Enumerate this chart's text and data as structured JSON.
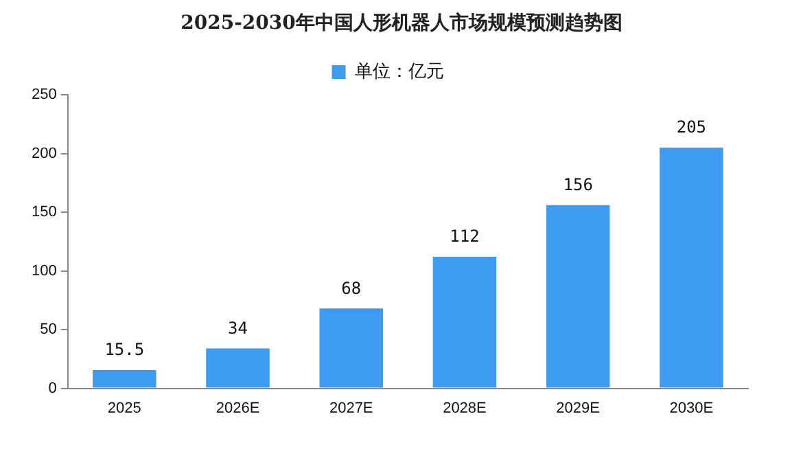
{
  "chart_data": {
    "type": "bar",
    "title": "2025-2030年中国人形机器人市场规模预测趋势图",
    "categories": [
      "2025",
      "2026E",
      "2027E",
      "2028E",
      "2029E",
      "2030E"
    ],
    "series": [
      {
        "name": "单位：亿元",
        "color": "#3d9cf0",
        "values": [
          15.5,
          34,
          68,
          112,
          156,
          205
        ]
      }
    ],
    "ylim": [
      0,
      250
    ],
    "yticks": [
      0,
      50,
      100,
      150,
      200,
      250
    ],
    "grid": false,
    "legend": "top",
    "data_labels": true
  }
}
